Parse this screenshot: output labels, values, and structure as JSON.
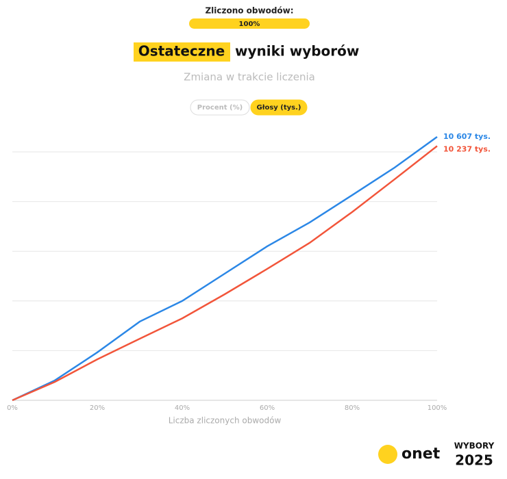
{
  "header": {
    "counted_label": "Zliczono obwodów:",
    "progress": {
      "value": 100,
      "label": "100%"
    },
    "title_highlight": "Ostateczne",
    "title_rest": "wyniki wyborów",
    "subtitle": "Zmiana w trakcie liczenia",
    "toggles": [
      "Procent (%)",
      "Głosy (tys.)"
    ],
    "active_toggle": 1
  },
  "chart_data": {
    "type": "line",
    "x": [
      0,
      10,
      20,
      30,
      40,
      50,
      60,
      70,
      80,
      90,
      100
    ],
    "series": [
      {
        "color": "#2b87e6",
        "values": [
          0,
          800,
          1930,
          3170,
          4000,
          5100,
          6200,
          7160,
          8260,
          9370,
          10607
        ],
        "value_labels": [
          null,
          null,
          null,
          null,
          null,
          null,
          null,
          null,
          null,
          null,
          "10 607 tys."
        ]
      },
      {
        "color": "#f2553a",
        "values": [
          0,
          740,
          1650,
          2480,
          3300,
          4270,
          5290,
          6340,
          7580,
          8900,
          10237
        ],
        "value_labels": [
          null,
          null,
          null,
          null,
          null,
          null,
          null,
          null,
          null,
          null,
          "10 237 tys."
        ]
      }
    ],
    "xlim": [
      0,
      100
    ],
    "ylim": [
      0,
      10800
    ],
    "xticks": [
      {
        "value": 0,
        "label": "0%"
      },
      {
        "value": 20,
        "label": "20%"
      },
      {
        "value": 40,
        "label": "40%"
      },
      {
        "value": 60,
        "label": "60%"
      },
      {
        "value": 80,
        "label": "80%"
      },
      {
        "value": 100,
        "label": "100%"
      }
    ],
    "yticks": [
      0,
      2000,
      4000,
      6000,
      8000,
      10000
    ],
    "grid": true,
    "x_label": "Liczba zliczonych obwodów"
  },
  "footer": {
    "logo": "onet",
    "badge_top": "WYBORY",
    "badge_bottom": "2025"
  }
}
